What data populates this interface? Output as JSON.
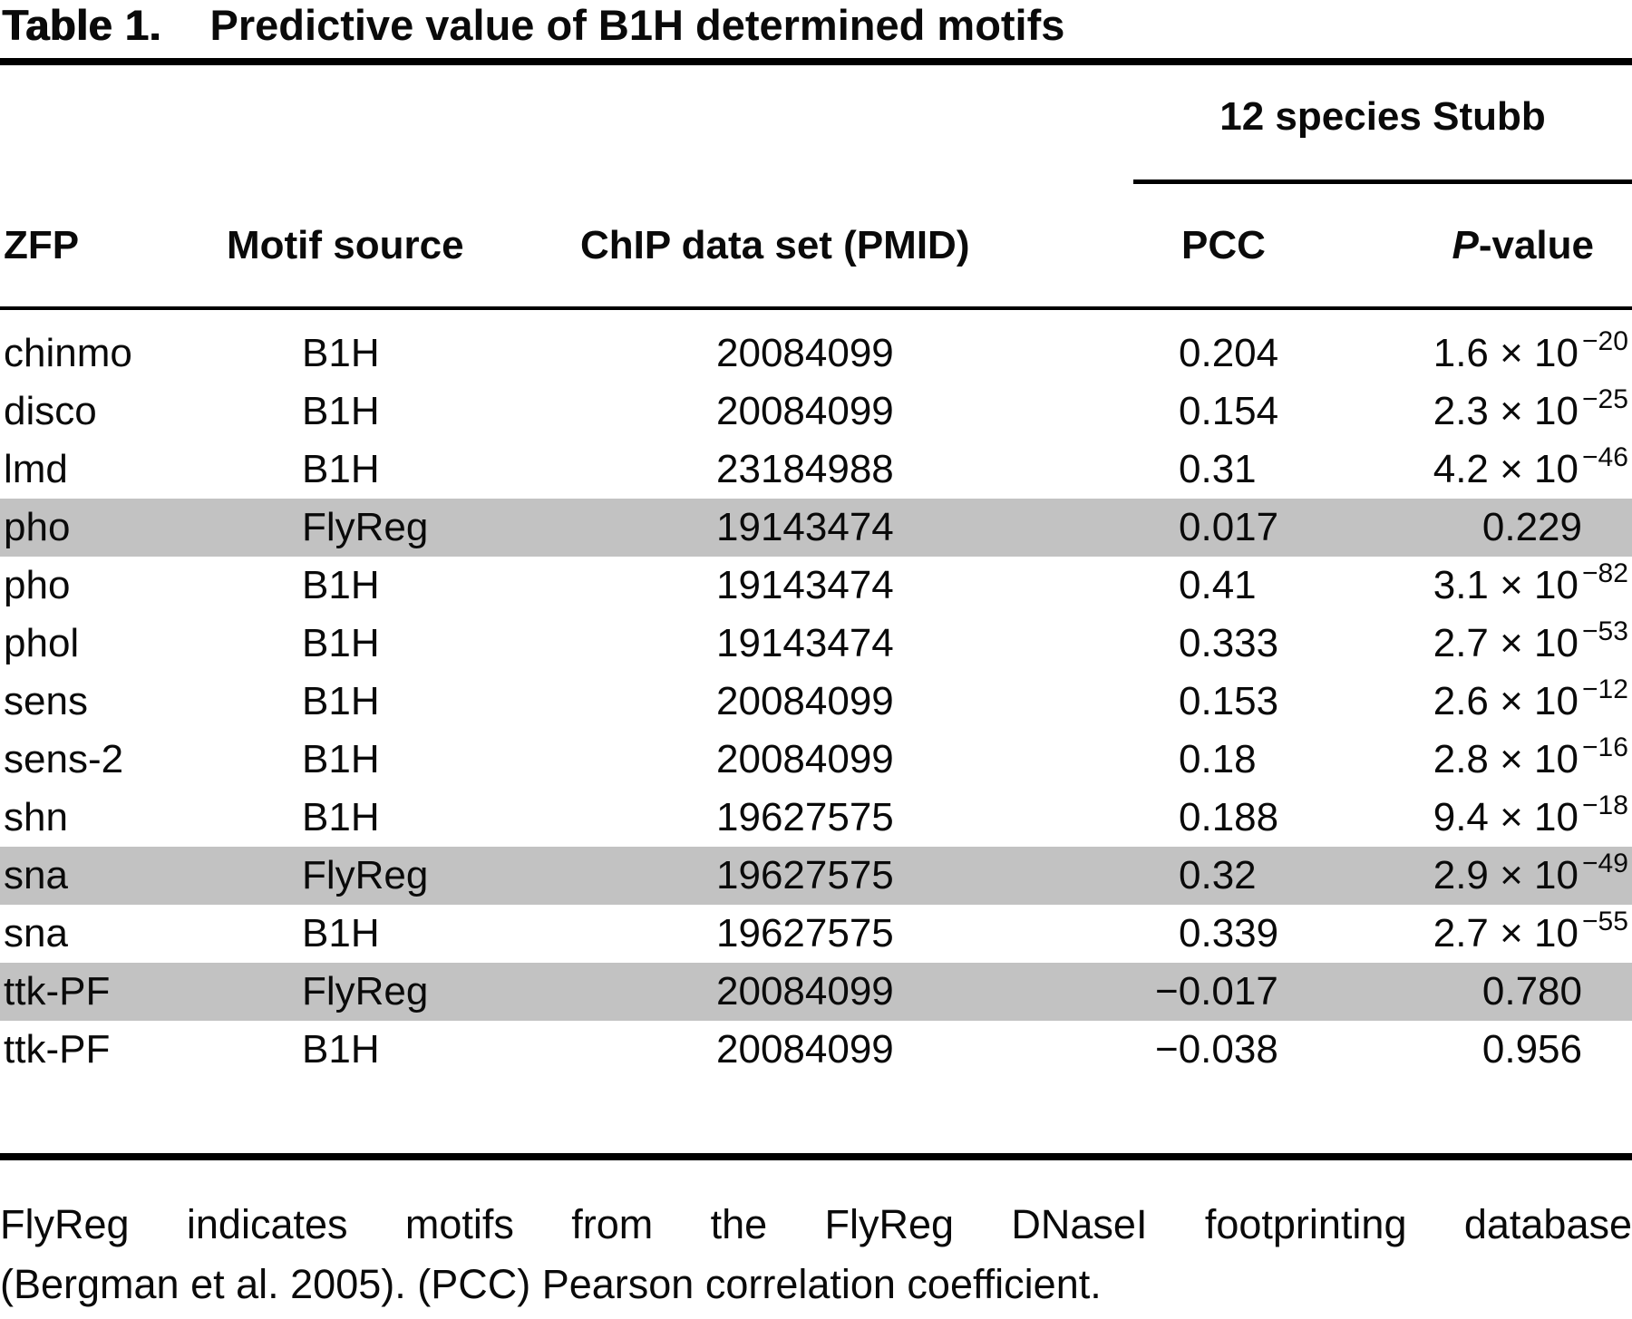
{
  "table": {
    "label": "Table 1.",
    "title": "Predictive value of B1H determined motifs",
    "span_header": "12 species Stubb",
    "columns": {
      "zfp": "ZFP",
      "motif_source": "Motif source",
      "chip": "ChIP data set (PMID)",
      "pcc": "PCC",
      "pvalue_italic": "P",
      "pvalue_rest": "-value"
    },
    "highlight_color": "#c2c2c2",
    "rows": [
      {
        "zfp": "chinmo",
        "source": "B1H",
        "pmid": "20084099",
        "pcc": "0.204",
        "p_base": "1.6 × 10",
        "p_exp": "−20",
        "highlight": false
      },
      {
        "zfp": "disco",
        "source": "B1H",
        "pmid": "20084099",
        "pcc": "0.154",
        "p_base": "2.3 × 10",
        "p_exp": "−25",
        "highlight": false
      },
      {
        "zfp": "lmd",
        "source": "B1H",
        "pmid": "23184988",
        "pcc": "0.31",
        "p_base": "4.2 × 10",
        "p_exp": "−46",
        "highlight": false
      },
      {
        "zfp": "pho",
        "source": "FlyReg",
        "pmid": "19143474",
        "pcc": "0.017",
        "p_base": "0.229",
        "p_exp": "",
        "highlight": true
      },
      {
        "zfp": "pho",
        "source": "B1H",
        "pmid": "19143474",
        "pcc": "0.41",
        "p_base": "3.1 × 10",
        "p_exp": "−82",
        "highlight": false
      },
      {
        "zfp": "phol",
        "source": "B1H",
        "pmid": "19143474",
        "pcc": "0.333",
        "p_base": "2.7 × 10",
        "p_exp": "−53",
        "highlight": false
      },
      {
        "zfp": "sens",
        "source": "B1H",
        "pmid": "20084099",
        "pcc": "0.153",
        "p_base": "2.6 × 10",
        "p_exp": "−12",
        "highlight": false
      },
      {
        "zfp": "sens-2",
        "source": "B1H",
        "pmid": "20084099",
        "pcc": "0.18",
        "p_base": "2.8 × 10",
        "p_exp": "−16",
        "highlight": false
      },
      {
        "zfp": "shn",
        "source": "B1H",
        "pmid": "19627575",
        "pcc": "0.188",
        "p_base": "9.4 × 10",
        "p_exp": "−18",
        "highlight": false
      },
      {
        "zfp": "sna",
        "source": "FlyReg",
        "pmid": "19627575",
        "pcc": "0.32",
        "p_base": "2.9 × 10",
        "p_exp": "−49",
        "highlight": true
      },
      {
        "zfp": "sna",
        "source": "B1H",
        "pmid": "19627575",
        "pcc": "0.339",
        "p_base": "2.7 × 10",
        "p_exp": "−55",
        "highlight": false
      },
      {
        "zfp": "ttk-PF",
        "source": "FlyReg",
        "pmid": "20084099",
        "pcc": "−0.017",
        "p_base": "0.780",
        "p_exp": "",
        "highlight": true
      },
      {
        "zfp": "ttk-PF",
        "source": "B1H",
        "pmid": "20084099",
        "pcc": "−0.038",
        "p_base": "0.956",
        "p_exp": "",
        "highlight": false
      }
    ],
    "footnote_line1": "FlyReg indicates motifs from the FlyReg DNaseI footprinting database",
    "footnote_line2": "(Bergman et al. 2005). (PCC) Pearson correlation coefficient."
  }
}
